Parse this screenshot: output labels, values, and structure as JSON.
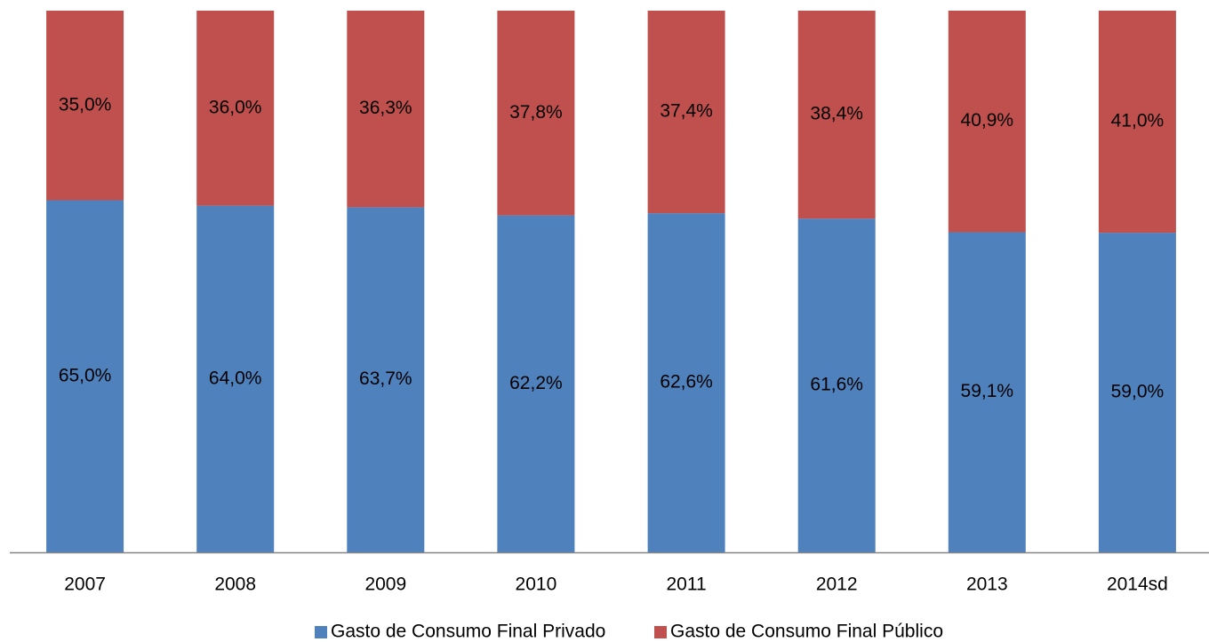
{
  "chart_data": {
    "type": "bar",
    "stacked": true,
    "percent_stacked": true,
    "categories": [
      "2007",
      "2008",
      "2009",
      "2010",
      "2011",
      "2012",
      "2013",
      "2014sd"
    ],
    "series": [
      {
        "name": "Gasto de Consumo Final Privado",
        "color": "#4f81bd",
        "values": [
          65.0,
          64.0,
          63.7,
          62.2,
          62.6,
          61.6,
          59.1,
          59.0
        ],
        "labels": [
          "65,0%",
          "64,0%",
          "63,7%",
          "62,2%",
          "62,6%",
          "61,6%",
          "59,1%",
          "59,0%"
        ]
      },
      {
        "name": "Gasto de Consumo Final Público",
        "color": "#c0504d",
        "values": [
          35.0,
          36.0,
          36.3,
          37.8,
          37.4,
          38.4,
          40.9,
          41.0
        ],
        "labels": [
          "35,0%",
          "36,0%",
          "36,3%",
          "37,8%",
          "37,4%",
          "38,4%",
          "40,9%",
          "41,0%"
        ]
      }
    ],
    "ylim": [
      0,
      100
    ],
    "grid": false,
    "legend": "bottom",
    "axis_color": "#868686"
  }
}
